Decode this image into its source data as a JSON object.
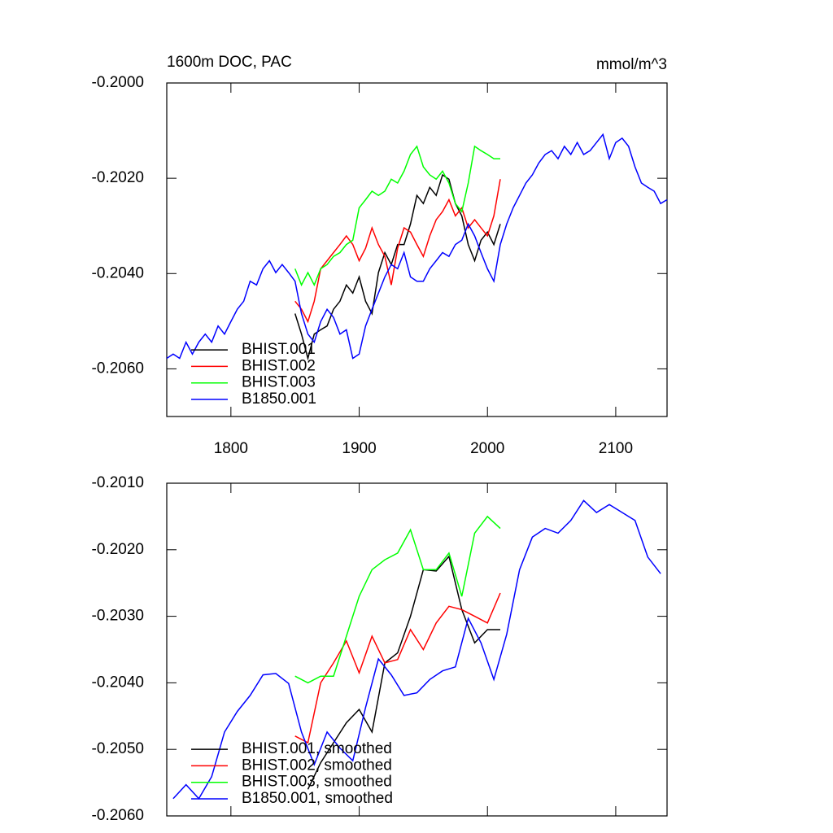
{
  "chart_data": [
    {
      "type": "line",
      "title": "1600m DOC, PAC",
      "units": "mmol/m^3",
      "xlim": [
        1750,
        2140
      ],
      "xticks": [
        1800,
        1900,
        2000,
        2100
      ],
      "show_xtick_labels": true,
      "ylim": [
        -0.207,
        -0.2
      ],
      "yticks": [
        {
          "value": -0.2,
          "label": "-0.2000"
        },
        {
          "value": -0.202,
          "label": "-0.2020"
        },
        {
          "value": -0.204,
          "label": "-0.2040"
        },
        {
          "value": -0.206,
          "label": "-0.2060"
        }
      ],
      "legend": "lower left",
      "series": [
        {
          "name": "BHIST.001",
          "color": "#000000",
          "x": [
            1850,
            1855,
            1860,
            1865,
            1870,
            1875,
            1880,
            1885,
            1890,
            1895,
            1900,
            1905,
            1910,
            1915,
            1920,
            1925,
            1930,
            1935,
            1940,
            1945,
            1950,
            1955,
            1960,
            1965,
            1970,
            1975,
            1980,
            1985,
            1990,
            1995,
            2000,
            2005,
            2010
          ],
          "values": [
            -0.20484,
            -0.20527,
            -0.20578,
            -0.20527,
            -0.20518,
            -0.2051,
            -0.20475,
            -0.20458,
            -0.20424,
            -0.20441,
            -0.20407,
            -0.20458,
            -0.20484,
            -0.20398,
            -0.20356,
            -0.20381,
            -0.20339,
            -0.20339,
            -0.20296,
            -0.20236,
            -0.20253,
            -0.20219,
            -0.20236,
            -0.20193,
            -0.20202,
            -0.20253,
            -0.20279,
            -0.20339,
            -0.20373,
            -0.2033,
            -0.20313,
            -0.20339,
            -0.20296
          ]
        },
        {
          "name": "BHIST.002",
          "color": "#ff0000",
          "x": [
            1850,
            1855,
            1860,
            1865,
            1870,
            1875,
            1880,
            1885,
            1890,
            1895,
            1900,
            1905,
            1910,
            1915,
            1920,
            1925,
            1930,
            1935,
            1940,
            1945,
            1950,
            1955,
            1960,
            1965,
            1970,
            1975,
            1980,
            1985,
            1990,
            1995,
            2000,
            2005,
            2010
          ],
          "values": [
            -0.20458,
            -0.20475,
            -0.20501,
            -0.20458,
            -0.2039,
            -0.20373,
            -0.20356,
            -0.20339,
            -0.20321,
            -0.20339,
            -0.20373,
            -0.20347,
            -0.20304,
            -0.20339,
            -0.20364,
            -0.20424,
            -0.20347,
            -0.20304,
            -0.20313,
            -0.20339,
            -0.20364,
            -0.20321,
            -0.20287,
            -0.2027,
            -0.20245,
            -0.20279,
            -0.20262,
            -0.20304,
            -0.20287,
            -0.20304,
            -0.20321,
            -0.20279,
            -0.20202
          ]
        },
        {
          "name": "BHIST.003",
          "color": "#00ff00",
          "x": [
            1850,
            1855,
            1860,
            1865,
            1870,
            1875,
            1880,
            1885,
            1890,
            1895,
            1900,
            1905,
            1910,
            1915,
            1920,
            1925,
            1930,
            1935,
            1940,
            1945,
            1950,
            1955,
            1960,
            1965,
            1970,
            1975,
            1980,
            1985,
            1990,
            1995,
            2000,
            2005,
            2010
          ],
          "values": [
            -0.2039,
            -0.20424,
            -0.20398,
            -0.20424,
            -0.2039,
            -0.20381,
            -0.20364,
            -0.20356,
            -0.20339,
            -0.2033,
            -0.20262,
            -0.20245,
            -0.20227,
            -0.20236,
            -0.20227,
            -0.20202,
            -0.2021,
            -0.20185,
            -0.2015,
            -0.20133,
            -0.20176,
            -0.20193,
            -0.20202,
            -0.20185,
            -0.2021,
            -0.20253,
            -0.2027,
            -0.2021,
            -0.20133,
            -0.20142,
            -0.2015,
            -0.20159,
            -0.20159
          ]
        },
        {
          "name": "B1850.001",
          "color": "#0000ff",
          "x": [
            1750,
            1755,
            1760,
            1765,
            1770,
            1775,
            1780,
            1785,
            1790,
            1795,
            1800,
            1805,
            1810,
            1815,
            1820,
            1825,
            1830,
            1835,
            1840,
            1845,
            1850,
            1855,
            1860,
            1865,
            1870,
            1875,
            1880,
            1885,
            1890,
            1895,
            1900,
            1905,
            1910,
            1915,
            1920,
            1925,
            1930,
            1935,
            1940,
            1945,
            1950,
            1955,
            1960,
            1965,
            1970,
            1975,
            1980,
            1985,
            1990,
            1995,
            2000,
            2005,
            2010,
            2015,
            2020,
            2025,
            2030,
            2035,
            2040,
            2045,
            2050,
            2055,
            2060,
            2065,
            2070,
            2075,
            2080,
            2085,
            2090,
            2095,
            2100,
            2105,
            2110,
            2115,
            2120,
            2125,
            2130,
            2135,
            2140
          ],
          "values": [
            -0.20578,
            -0.20569,
            -0.20578,
            -0.20544,
            -0.20569,
            -0.20544,
            -0.20527,
            -0.20544,
            -0.2051,
            -0.20527,
            -0.20501,
            -0.20475,
            -0.20458,
            -0.20416,
            -0.20424,
            -0.2039,
            -0.20373,
            -0.20398,
            -0.20381,
            -0.20398,
            -0.20416,
            -0.20484,
            -0.20527,
            -0.20544,
            -0.20501,
            -0.20475,
            -0.20492,
            -0.20527,
            -0.20518,
            -0.20578,
            -0.20569,
            -0.2051,
            -0.20475,
            -0.20441,
            -0.20407,
            -0.20381,
            -0.2039,
            -0.20356,
            -0.20407,
            -0.20416,
            -0.20416,
            -0.2039,
            -0.20373,
            -0.20356,
            -0.20364,
            -0.20339,
            -0.2033,
            -0.20296,
            -0.20321,
            -0.20356,
            -0.2039,
            -0.20416,
            -0.20339,
            -0.20296,
            -0.20262,
            -0.20236,
            -0.2021,
            -0.20193,
            -0.20168,
            -0.2015,
            -0.20142,
            -0.20159,
            -0.20133,
            -0.2015,
            -0.20125,
            -0.2015,
            -0.20142,
            -0.20125,
            -0.20108,
            -0.20159,
            -0.20125,
            -0.20116,
            -0.20133,
            -0.20176,
            -0.2021,
            -0.20219,
            -0.20227,
            -0.20253,
            -0.20245
          ]
        }
      ]
    },
    {
      "type": "line",
      "xlim": [
        1750,
        2140
      ],
      "xticks": [
        1800,
        1900,
        2000,
        2100
      ],
      "show_xtick_labels": false,
      "ylim": [
        -0.206,
        -0.201
      ],
      "yticks": [
        {
          "value": -0.201,
          "label": "-0.2010"
        },
        {
          "value": -0.202,
          "label": "-0.2020"
        },
        {
          "value": -0.203,
          "label": "-0.2030"
        },
        {
          "value": -0.204,
          "label": "-0.2040"
        },
        {
          "value": -0.205,
          "label": "-0.2050"
        },
        {
          "value": -0.206,
          "label": "-0.2060"
        }
      ],
      "legend": "lower left",
      "series": [
        {
          "name": "BHIST.001, smoothed",
          "color": "#000000",
          "x": [
            1860,
            1870,
            1880,
            1890,
            1900,
            1910,
            1920,
            1930,
            1940,
            1950,
            1960,
            1970,
            1980,
            1990,
            2000,
            2010
          ],
          "values": [
            -0.2056,
            -0.2052,
            -0.2049,
            -0.2046,
            -0.2044,
            -0.20474,
            -0.2037,
            -0.20355,
            -0.203,
            -0.2023,
            -0.20232,
            -0.2021,
            -0.2029,
            -0.2034,
            -0.2032,
            -0.2032
          ]
        },
        {
          "name": "BHIST.002, smoothed",
          "color": "#ff0000",
          "x": [
            1850,
            1860,
            1870,
            1880,
            1890,
            1900,
            1910,
            1920,
            1930,
            1940,
            1950,
            1960,
            1970,
            1980,
            1990,
            2000,
            2010
          ],
          "values": [
            -0.2048,
            -0.2049,
            -0.204,
            -0.2037,
            -0.20337,
            -0.20385,
            -0.2033,
            -0.2037,
            -0.20365,
            -0.2032,
            -0.2035,
            -0.2031,
            -0.20285,
            -0.2029,
            -0.203,
            -0.2031,
            -0.20265
          ]
        },
        {
          "name": "BHIST.003, smoothed",
          "color": "#00ff00",
          "x": [
            1850,
            1860,
            1870,
            1880,
            1890,
            1900,
            1910,
            1920,
            1930,
            1940,
            1950,
            1960,
            1970,
            1980,
            1990,
            2000,
            2010
          ],
          "values": [
            -0.2039,
            -0.204,
            -0.2039,
            -0.2039,
            -0.2033,
            -0.2027,
            -0.2023,
            -0.20215,
            -0.20205,
            -0.2017,
            -0.2023,
            -0.2023,
            -0.20205,
            -0.2027,
            -0.20175,
            -0.2015,
            -0.20168
          ]
        },
        {
          "name": "B1850.001, smoothed",
          "color": "#0000ff",
          "x": [
            1755,
            1765,
            1775,
            1785,
            1795,
            1805,
            1815,
            1825,
            1835,
            1845,
            1855,
            1865,
            1875,
            1885,
            1895,
            1905,
            1915,
            1925,
            1935,
            1945,
            1955,
            1965,
            1975,
            1985,
            1995,
            2005,
            2015,
            2025,
            2035,
            2045,
            2055,
            2065,
            2075,
            2085,
            2095,
            2105,
            2115,
            2125,
            2135
          ],
          "values": [
            -0.20574,
            -0.20553,
            -0.20574,
            -0.20541,
            -0.20474,
            -0.20443,
            -0.20419,
            -0.20388,
            -0.20386,
            -0.20401,
            -0.20474,
            -0.20523,
            -0.20474,
            -0.20498,
            -0.20517,
            -0.20437,
            -0.20364,
            -0.20388,
            -0.20419,
            -0.20415,
            -0.20395,
            -0.20382,
            -0.20376,
            -0.20303,
            -0.2034,
            -0.20395,
            -0.20327,
            -0.2023,
            -0.20181,
            -0.20168,
            -0.20175,
            -0.20156,
            -0.20126,
            -0.20144,
            -0.20132,
            -0.20144,
            -0.20156,
            -0.20211,
            -0.20236
          ]
        }
      ]
    }
  ]
}
